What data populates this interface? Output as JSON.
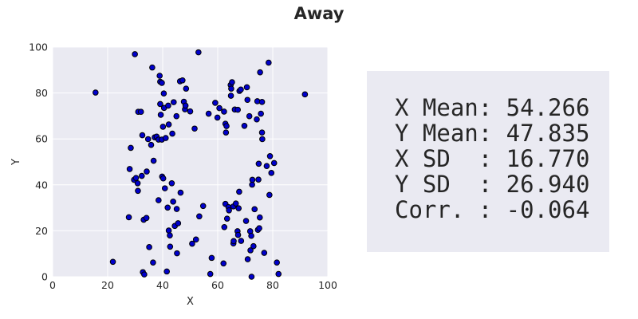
{
  "chart_data": {
    "type": "scatter",
    "title": "Away",
    "xlabel": "X",
    "ylabel": "Y",
    "xlim": [
      0,
      100
    ],
    "ylim": [
      0,
      100
    ],
    "xticks": [
      0,
      20,
      40,
      60,
      80,
      100
    ],
    "yticks": [
      0,
      20,
      40,
      60,
      80,
      100
    ],
    "grid": true,
    "point_color": "#0000cc",
    "point_edge_color": "#000000",
    "background": "#eaeaf2",
    "points": [
      [
        15.6,
        80.2
      ],
      [
        21.9,
        6.5
      ],
      [
        27.7,
        25.9
      ],
      [
        28.0,
        46.9
      ],
      [
        28.4,
        56.1
      ],
      [
        29.6,
        42.2
      ],
      [
        29.9,
        96.9
      ],
      [
        30.3,
        43.0
      ],
      [
        30.9,
        40.7
      ],
      [
        31.0,
        37.4
      ],
      [
        31.1,
        71.8
      ],
      [
        32.1,
        71.8
      ],
      [
        32.4,
        43.9
      ],
      [
        32.6,
        61.6
      ],
      [
        32.8,
        2.0
      ],
      [
        33.1,
        24.8
      ],
      [
        33.3,
        1.0
      ],
      [
        34.1,
        25.6
      ],
      [
        34.2,
        45.8
      ],
      [
        34.7,
        59.9
      ],
      [
        35.1,
        12.9
      ],
      [
        35.8,
        57.4
      ],
      [
        36.2,
        91.1
      ],
      [
        36.5,
        6.2
      ],
      [
        36.7,
        50.5
      ],
      [
        37.1,
        60.7
      ],
      [
        37.8,
        61.0
      ],
      [
        38.5,
        59.7
      ],
      [
        38.5,
        33.3
      ],
      [
        38.9,
        87.5
      ],
      [
        39.1,
        84.9
      ],
      [
        39.1,
        75.2
      ],
      [
        39.3,
        70.5
      ],
      [
        39.7,
        84.4
      ],
      [
        39.7,
        59.7
      ],
      [
        39.8,
        43.6
      ],
      [
        40.1,
        65.3
      ],
      [
        40.2,
        42.8
      ],
      [
        40.4,
        79.8
      ],
      [
        40.5,
        73.5
      ],
      [
        40.8,
        38.5
      ],
      [
        41.1,
        60.4
      ],
      [
        41.5,
        2.3
      ],
      [
        41.8,
        30.1
      ],
      [
        42.0,
        74.5
      ],
      [
        42.2,
        20.1
      ],
      [
        42.2,
        66.3
      ],
      [
        42.6,
        18.0
      ],
      [
        42.7,
        13.1
      ],
      [
        43.3,
        40.7
      ],
      [
        43.5,
        62.3
      ],
      [
        43.8,
        32.7
      ],
      [
        44.0,
        76.0
      ],
      [
        44.4,
        22.1
      ],
      [
        45.0,
        69.9
      ],
      [
        45.1,
        29.5
      ],
      [
        45.2,
        10.2
      ],
      [
        45.6,
        23.3
      ],
      [
        46.3,
        85.1
      ],
      [
        46.5,
        36.6
      ],
      [
        47.2,
        85.5
      ],
      [
        47.7,
        76.2
      ],
      [
        48.1,
        72.9
      ],
      [
        48.3,
        74.5
      ],
      [
        48.5,
        81.9
      ],
      [
        50.0,
        72.0
      ],
      [
        50.7,
        14.4
      ],
      [
        51.6,
        64.5
      ],
      [
        52.1,
        16.2
      ],
      [
        53.0,
        97.7
      ],
      [
        53.3,
        26.3
      ],
      [
        54.7,
        30.8
      ],
      [
        56.7,
        71.0
      ],
      [
        57.3,
        1.2
      ],
      [
        57.8,
        8.2
      ],
      [
        59.1,
        75.7
      ],
      [
        59.9,
        69.3
      ],
      [
        60.6,
        73.4
      ],
      [
        62.1,
        5.8
      ],
      [
        62.3,
        71.9
      ],
      [
        62.4,
        21.6
      ],
      [
        62.8,
        66.6
      ],
      [
        62.8,
        31.7
      ],
      [
        63.0,
        62.8
      ],
      [
        63.2,
        65.6
      ],
      [
        63.4,
        25.3
      ],
      [
        63.9,
        30.3
      ],
      [
        64.1,
        28.9
      ],
      [
        64.7,
        83.5
      ],
      [
        64.8,
        78.8
      ],
      [
        64.9,
        81.9
      ],
      [
        65.2,
        84.7
      ],
      [
        65.7,
        14.5
      ],
      [
        65.7,
        30.6
      ],
      [
        65.8,
        15.5
      ],
      [
        66.2,
        72.8
      ],
      [
        66.6,
        31.9
      ],
      [
        67.2,
        19.8
      ],
      [
        67.3,
        72.7
      ],
      [
        67.4,
        18.2
      ],
      [
        67.6,
        29.8
      ],
      [
        67.8,
        37.0
      ],
      [
        67.9,
        80.9
      ],
      [
        68.4,
        81.5
      ],
      [
        68.5,
        15.6
      ],
      [
        69.7,
        65.7
      ],
      [
        70.3,
        24.3
      ],
      [
        70.6,
        82.5
      ],
      [
        70.8,
        77.0
      ],
      [
        70.9,
        7.6
      ],
      [
        71.5,
        69.9
      ],
      [
        71.8,
        19.8
      ],
      [
        71.9,
        11.5
      ],
      [
        72.2,
        17.8
      ],
      [
        72.3,
        0.0
      ],
      [
        72.5,
        40.1
      ],
      [
        72.6,
        42.2
      ],
      [
        73.0,
        13.3
      ],
      [
        73.4,
        29.4
      ],
      [
        74.2,
        68.5
      ],
      [
        74.4,
        76.4
      ],
      [
        74.6,
        20.4
      ],
      [
        74.8,
        42.3
      ],
      [
        74.9,
        49.2
      ],
      [
        75.1,
        21.1
      ],
      [
        75.3,
        25.8
      ],
      [
        75.4,
        89.0
      ],
      [
        75.7,
        71.0
      ],
      [
        76.1,
        62.8
      ],
      [
        76.1,
        76.1
      ],
      [
        76.2,
        59.9
      ],
      [
        76.9,
        10.4
      ],
      [
        77.8,
        48.2
      ],
      [
        78.5,
        93.2
      ],
      [
        78.8,
        35.6
      ],
      [
        79.0,
        52.5
      ],
      [
        79.5,
        45.2
      ],
      [
        80.5,
        49.5
      ],
      [
        81.5,
        6.2
      ],
      [
        82.1,
        1.2
      ],
      [
        91.7,
        79.4
      ]
    ]
  },
  "stats": {
    "lines": [
      "X Mean: 54.266",
      "Y Mean: 47.835",
      "X SD  : 16.770",
      "Y SD  : 26.940",
      "Corr. : -0.064"
    ]
  }
}
